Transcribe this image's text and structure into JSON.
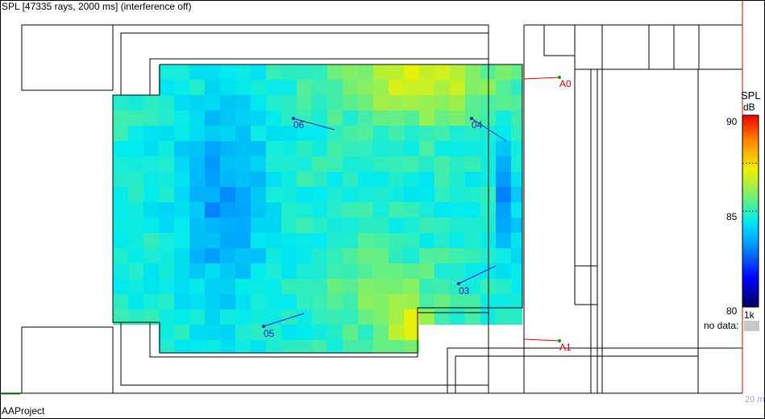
{
  "window": {
    "title": "SPL [47335 rays, 2000 ms] (interference off)",
    "project": "AAProject"
  },
  "sources": [
    {
      "label": "A0",
      "color": "#e00000"
    },
    {
      "label": "A1",
      "color": "#e00000"
    }
  ],
  "receivers": [
    {
      "label": "06",
      "color": "#2020c0"
    },
    {
      "label": "04",
      "color": "#2020c0"
    },
    {
      "label": "03",
      "color": "#2020c0"
    },
    {
      "label": "05",
      "color": "#2020c0"
    }
  ],
  "legend": {
    "title": "SPL",
    "unit": "dB",
    "ticks": [
      "90",
      "85",
      "80"
    ],
    "band": "1k",
    "no_data_label": "no data:",
    "no_data_color": "#c8c8c8",
    "scale_min": 80,
    "scale_max": 90
  },
  "scale_bar": {
    "label": "20 m"
  }
}
